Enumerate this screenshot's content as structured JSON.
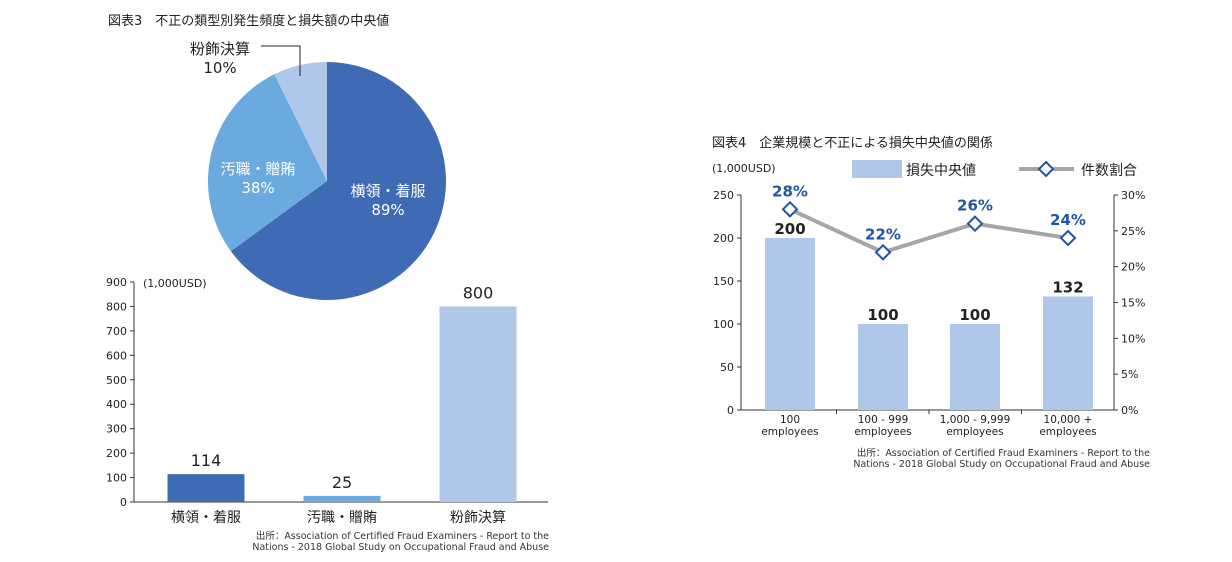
{
  "figure3": {
    "title": "図表3　不正の類型別発生頻度と損失額の中央値",
    "pie": {
      "type": "pie",
      "slices": [
        {
          "label": "横領・着服",
          "value": 89,
          "value_label": "89%",
          "color": "#3f6bb4"
        },
        {
          "label": "汚職・贈賄",
          "value": 38,
          "value_label": "38%",
          "color": "#6aaade"
        },
        {
          "label": "粉飾決算",
          "value": 10,
          "value_label": "10%",
          "color": "#afc7e8"
        }
      ]
    },
    "bar": {
      "type": "bar",
      "unit_label": "(1,000USD)",
      "categories": [
        "横領・着服",
        "汚職・贈賄",
        "粉飾決算"
      ],
      "values": [
        114,
        25,
        800
      ],
      "value_labels": [
        "114",
        "25",
        "800"
      ],
      "colors": [
        "#3f6bb4",
        "#6aaade",
        "#afc7e8"
      ],
      "ylim": [
        0,
        900
      ],
      "yticks": [
        0,
        100,
        200,
        300,
        400,
        500,
        600,
        700,
        800,
        900
      ]
    },
    "source_line1": "出所：Association of Certified Fraud Examiners - Report to the",
    "source_line2": "Nations - 2018 Global Study on Occupational Fraud and Abuse"
  },
  "figure4": {
    "title": "図表4　企業規模と不正による損失中央値の関係",
    "unit_label": "(1,000USD)",
    "legend": {
      "bar_label": "損失中央値",
      "line_label": "件数割合"
    },
    "chart_data": {
      "type": "bar",
      "categories": [
        "100\nemployees",
        "100 - 999\nemployees",
        "1,000 - 9,999\nemployees",
        "10,000 +\nemployees"
      ],
      "series": [
        {
          "name": "損失中央値",
          "type": "bar",
          "values": [
            200,
            100,
            100,
            132
          ],
          "value_labels": [
            "200",
            "100",
            "100",
            "132"
          ],
          "color": "#afc7e8"
        },
        {
          "name": "件数割合",
          "type": "line",
          "values": [
            28,
            22,
            26,
            24
          ],
          "value_labels": [
            "28%",
            "22%",
            "26%",
            "24%"
          ],
          "color": "#a6a6a6",
          "marker_color": "#1f55a8"
        }
      ],
      "ylim": [
        0,
        250
      ],
      "yticks": [
        0,
        50,
        100,
        150,
        200,
        250
      ],
      "y2lim": [
        0,
        30
      ],
      "y2ticks": [
        "0%",
        "5%",
        "10%",
        "15%",
        "20%",
        "25%",
        "30%"
      ]
    },
    "source_line1": "出所：Association of Certified Fraud Examiners - Report to the",
    "source_line2": "Nations - 2018 Global Study on Occupational Fraud and Abuse"
  }
}
